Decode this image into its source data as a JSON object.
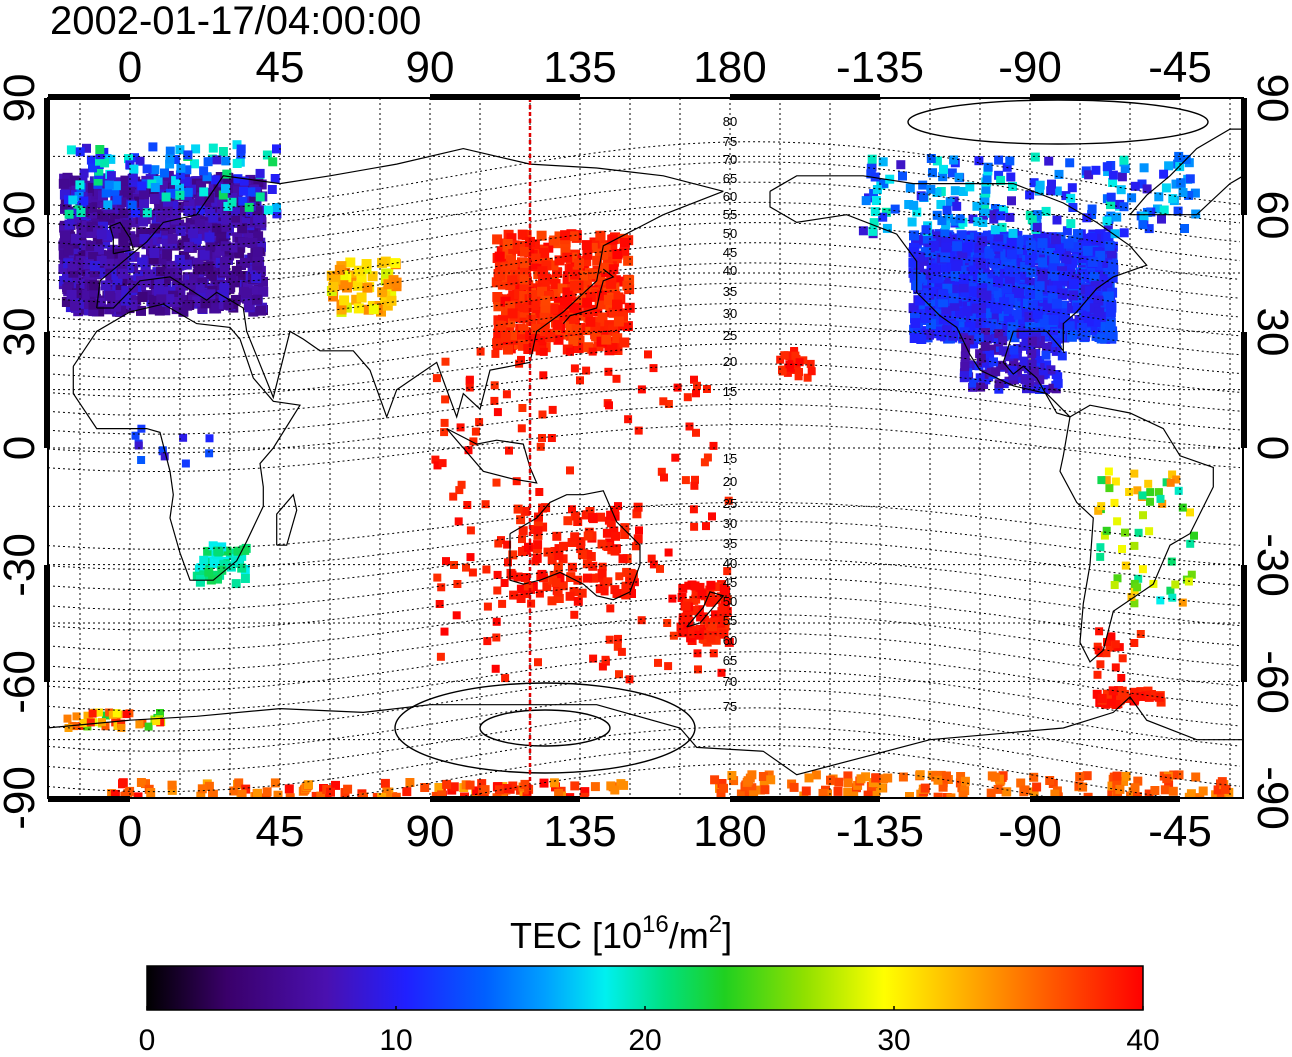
{
  "title": "2002-01-17/04:00:00",
  "top_ticks": [
    "0",
    "45",
    "90",
    "135",
    "180",
    "-135",
    "-90",
    "-45"
  ],
  "bottom_ticks": [
    "0",
    "45",
    "90",
    "135",
    "180",
    "-135",
    "-90",
    "-45"
  ],
  "left_ticks": [
    "90",
    "60",
    "30",
    "0",
    "-30",
    "-60",
    "-90"
  ],
  "right_ticks": [
    "90",
    "60",
    "30",
    "0",
    "-30",
    "-60",
    "-90"
  ],
  "mlat_north": [
    "80",
    "75",
    "70",
    "65",
    "60",
    "55",
    "50",
    "45",
    "40",
    "35",
    "30",
    "25",
    "20",
    "15"
  ],
  "mlat_south": [
    "15",
    "20",
    "25",
    "30",
    "35",
    "40",
    "45",
    "50",
    "55",
    "60",
    "65",
    "70",
    "75"
  ],
  "colorbar": {
    "title_main": "TEC  [10",
    "title_sup1": "16",
    "title_mid": "/m",
    "title_sup2": "2",
    "title_end": "]",
    "ticks": [
      "0",
      "10",
      "20",
      "30",
      "40"
    ],
    "min": 0,
    "max": 40
  },
  "subsolar_longitude": 120,
  "colors": {
    "subsolar_line": "#e00000",
    "graticule": "#000000",
    "coast": "#000000"
  }
}
